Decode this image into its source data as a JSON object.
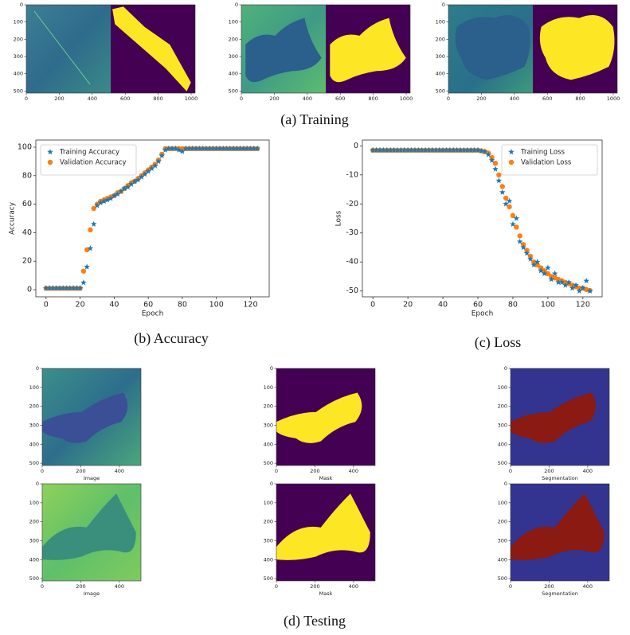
{
  "captions": {
    "training": "(a)  Training",
    "accuracy": "(b)  Accuracy",
    "loss": "(c)  Loss",
    "testing": "(d)  Testing"
  },
  "image_axes": {
    "training": {
      "xlim": [
        0,
        1024
      ],
      "ylim": [
        0,
        512
      ],
      "xticks": [
        0,
        200,
        400,
        600,
        800,
        1000
      ],
      "yticks": [
        0,
        100,
        200,
        300,
        400,
        500
      ]
    },
    "testing": {
      "xlim": [
        0,
        512
      ],
      "ylim": [
        0,
        512
      ],
      "xticks": [
        0,
        200,
        400
      ],
      "yticks": [
        0,
        100,
        200,
        300,
        400,
        500
      ],
      "labels": [
        "Image",
        "Mask",
        "Segmentation"
      ]
    }
  },
  "chart_data": [
    {
      "type": "scatter",
      "xlabel": "Epoch",
      "ylabel": "Accuracy",
      "legend": "upper left",
      "xlim": [
        -6,
        131
      ],
      "xticks": [
        0,
        20,
        40,
        60,
        80,
        100,
        120
      ],
      "ylim": [
        -5,
        105
      ],
      "yticks": [
        0,
        20,
        40,
        60,
        80,
        100
      ],
      "x": [
        0,
        2,
        4,
        6,
        8,
        10,
        12,
        14,
        16,
        18,
        20,
        22,
        24,
        26,
        28,
        30,
        32,
        34,
        36,
        38,
        40,
        42,
        44,
        46,
        48,
        50,
        52,
        54,
        56,
        58,
        60,
        62,
        64,
        66,
        68,
        70,
        72,
        74,
        76,
        78,
        80,
        82,
        84,
        86,
        88,
        90,
        92,
        94,
        96,
        98,
        100,
        102,
        104,
        106,
        108,
        110,
        112,
        114,
        116,
        118,
        120,
        122,
        124
      ],
      "series": [
        {
          "name": "Training Accuracy",
          "color": "#1f77b4",
          "marker": "star",
          "values": [
            1,
            1,
            1,
            1,
            1,
            1,
            1,
            1,
            1,
            1,
            1,
            5,
            16,
            29,
            46,
            59,
            61,
            62,
            63,
            64,
            66,
            67,
            69,
            71,
            72,
            74,
            76,
            77,
            79,
            81,
            83,
            85,
            87,
            90,
            94,
            98,
            99,
            99,
            99,
            98,
            97,
            99,
            99,
            99,
            99,
            99,
            99,
            99,
            99,
            99,
            99,
            99,
            99,
            99,
            99,
            99,
            99,
            99,
            99,
            99,
            99,
            99,
            99
          ]
        },
        {
          "name": "Validation Accuracy",
          "color": "#ff7f0e",
          "marker": "circle",
          "values": [
            1,
            1,
            1,
            1,
            1,
            1,
            1,
            1,
            1,
            1,
            1,
            13,
            28,
            42,
            57,
            60,
            62,
            63,
            64,
            65,
            66,
            68,
            69,
            71,
            73,
            75,
            76,
            78,
            80,
            82,
            84,
            86,
            88,
            91,
            95,
            99,
            99,
            99,
            99,
            99,
            99,
            99,
            99,
            99,
            99,
            99,
            99,
            99,
            99,
            99,
            99,
            99,
            99,
            99,
            99,
            99,
            99,
            99,
            99,
            99,
            99,
            99,
            99
          ]
        }
      ]
    },
    {
      "type": "scatter",
      "xlabel": "Epoch",
      "ylabel": "Loss",
      "legend": "upper right",
      "xlim": [
        -6,
        131
      ],
      "xticks": [
        0,
        20,
        40,
        60,
        80,
        100,
        120
      ],
      "ylim": [
        -52,
        2
      ],
      "yticks": [
        -50,
        -40,
        -30,
        -20,
        -10,
        0
      ],
      "x": [
        0,
        2,
        4,
        6,
        8,
        10,
        12,
        14,
        16,
        18,
        20,
        22,
        24,
        26,
        28,
        30,
        32,
        34,
        36,
        38,
        40,
        42,
        44,
        46,
        48,
        50,
        52,
        54,
        56,
        58,
        60,
        62,
        64,
        66,
        68,
        70,
        72,
        74,
        76,
        78,
        80,
        82,
        84,
        86,
        88,
        90,
        92,
        94,
        96,
        98,
        100,
        102,
        104,
        106,
        108,
        110,
        112,
        114,
        116,
        118,
        120,
        122,
        124
      ],
      "series": [
        {
          "name": "Training Loss",
          "color": "#1f77b4",
          "marker": "star",
          "values": [
            -1.5,
            -1.5,
            -1.5,
            -1.5,
            -1.5,
            -1.5,
            -1.5,
            -1.5,
            -1.5,
            -1.5,
            -1.5,
            -1.5,
            -1.5,
            -1.5,
            -1.5,
            -1.5,
            -1.5,
            -1.5,
            -1.5,
            -1.5,
            -1.5,
            -1.5,
            -1.5,
            -1.5,
            -1.5,
            -1.5,
            -1.5,
            -1.5,
            -1.5,
            -1.5,
            -1.5,
            -1.8,
            -2,
            -3,
            -5,
            -8,
            -12,
            -16,
            -20,
            -19,
            -27,
            -25,
            -33,
            -35,
            -37,
            -39,
            -41,
            -40,
            -43,
            -44,
            -42,
            -46,
            -44,
            -47,
            -47,
            -48,
            -47,
            -49,
            -48,
            -50,
            -49,
            -46.5,
            -50
          ]
        },
        {
          "name": "Validation Loss",
          "color": "#ff7f0e",
          "marker": "circle",
          "values": [
            -1.5,
            -1.5,
            -1.5,
            -1.5,
            -1.5,
            -1.5,
            -1.5,
            -1.5,
            -1.5,
            -1.5,
            -1.5,
            -1.5,
            -1.5,
            -1.5,
            -1.5,
            -1.5,
            -1.5,
            -1.5,
            -1.5,
            -1.5,
            -1.5,
            -1.5,
            -1.5,
            -1.5,
            -1.5,
            -1.5,
            -1.5,
            -1.5,
            -1.5,
            -1.5,
            -1.5,
            -1.7,
            -2,
            -2.5,
            -4,
            -6,
            -10,
            -14,
            -18,
            -21,
            -24,
            -28,
            -31,
            -34,
            -36,
            -38,
            -40,
            -41,
            -42,
            -43,
            -44,
            -45,
            -45.5,
            -46,
            -46.5,
            -47,
            -47.5,
            -48,
            -48.5,
            -49,
            -49,
            -49.5,
            -49.8
          ]
        }
      ]
    }
  ]
}
